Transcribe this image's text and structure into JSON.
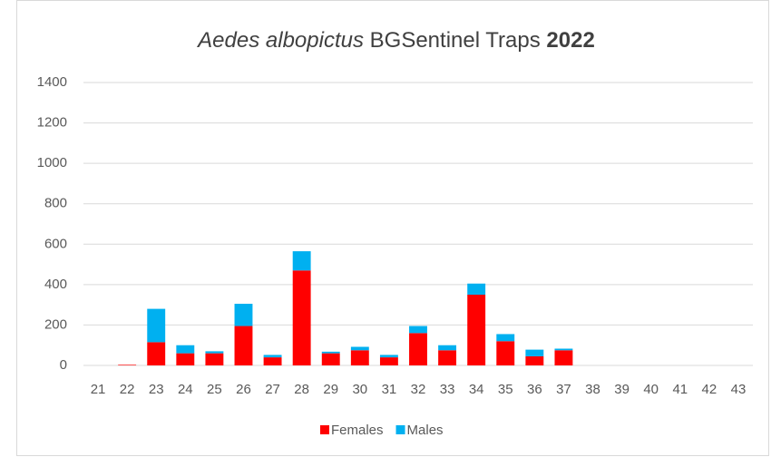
{
  "chart_data": {
    "type": "stacked-bar",
    "title": [
      "Aedes albopictus",
      "BGSentinel Traps",
      "2022"
    ],
    "categories": [
      "21",
      "22",
      "23",
      "24",
      "25",
      "26",
      "27",
      "28",
      "29",
      "30",
      "31",
      "32",
      "33",
      "34",
      "35",
      "36",
      "37",
      "38",
      "39",
      "40",
      "41",
      "42",
      "43"
    ],
    "series": [
      {
        "name": "Females",
        "color": "#ff0000",
        "values": [
          0,
          3,
          115,
          60,
          60,
          195,
          40,
          470,
          60,
          75,
          40,
          160,
          75,
          350,
          120,
          45,
          75,
          0,
          0,
          0,
          0,
          0,
          0
        ]
      },
      {
        "name": "Males",
        "color": "#00b0f0",
        "values": [
          0,
          0,
          165,
          40,
          10,
          110,
          12,
          95,
          8,
          17,
          12,
          35,
          25,
          55,
          35,
          33,
          8,
          0,
          0,
          0,
          0,
          0,
          0
        ]
      }
    ],
    "ylim": [
      0,
      1400
    ],
    "yticks": [
      0,
      200,
      400,
      600,
      800,
      1000,
      1200,
      1400
    ],
    "grid": true,
    "legend": "bottom"
  }
}
